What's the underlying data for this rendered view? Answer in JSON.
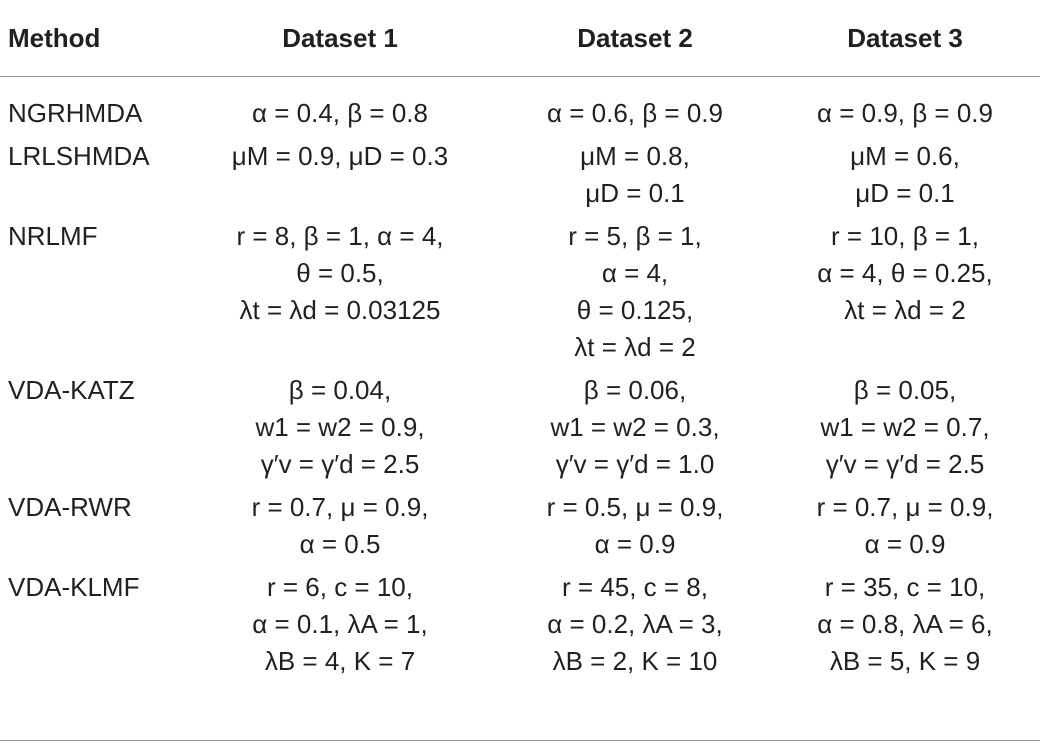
{
  "table": {
    "headers": [
      "Method",
      "Dataset 1",
      "Dataset 2",
      "Dataset 3"
    ],
    "rows": [
      {
        "method": "NGRHMDA",
        "d1": [
          "α = 0.4, β = 0.8"
        ],
        "d2": [
          "α = 0.6, β = 0.9"
        ],
        "d3": [
          "α = 0.9, β = 0.9"
        ]
      },
      {
        "method": "LRLSHMDA",
        "d1": [
          "μM = 0.9, μD = 0.3"
        ],
        "d2": [
          "μM = 0.8,",
          "μD = 0.1"
        ],
        "d3": [
          "μM = 0.6,",
          "μD = 0.1"
        ]
      },
      {
        "method": "NRLMF",
        "d1": [
          "r = 8, β = 1, α = 4,",
          "θ = 0.5,",
          "λt = λd = 0.03125"
        ],
        "d2": [
          "r = 5, β = 1,",
          "α = 4,",
          "θ = 0.125,",
          "λt = λd = 2"
        ],
        "d3": [
          "r = 10, β = 1,",
          "α = 4, θ = 0.25,",
          "λt = λd = 2"
        ]
      },
      {
        "method": "VDA-KATZ",
        "d1": [
          "β = 0.04,",
          "w1 = w2 = 0.9,",
          "γ′v = γ′d = 2.5"
        ],
        "d2": [
          "β = 0.06,",
          "w1 = w2 = 0.3,",
          "γ′v = γ′d = 1.0"
        ],
        "d3": [
          "β = 0.05,",
          "w1 = w2 = 0.7,",
          "γ′v = γ′d = 2.5"
        ]
      },
      {
        "method": "VDA-RWR",
        "d1": [
          "r = 0.7, μ = 0.9,",
          "α = 0.5"
        ],
        "d2": [
          "r = 0.5, μ = 0.9,",
          "α = 0.9"
        ],
        "d3": [
          "r = 0.7, μ = 0.9,",
          "α = 0.9"
        ]
      },
      {
        "method": "VDA-KLMF",
        "d1": [
          "r = 6, c = 10,",
          "α = 0.1, λA = 1,",
          "λB = 4, K = 7"
        ],
        "d2": [
          "r = 45, c = 8,",
          "α = 0.2, λA = 3,",
          "λB = 2, K = 10"
        ],
        "d3": [
          "r = 35, c = 10,",
          "α = 0.8, λA = 6,",
          "λB = 5, K = 9"
        ]
      }
    ]
  }
}
